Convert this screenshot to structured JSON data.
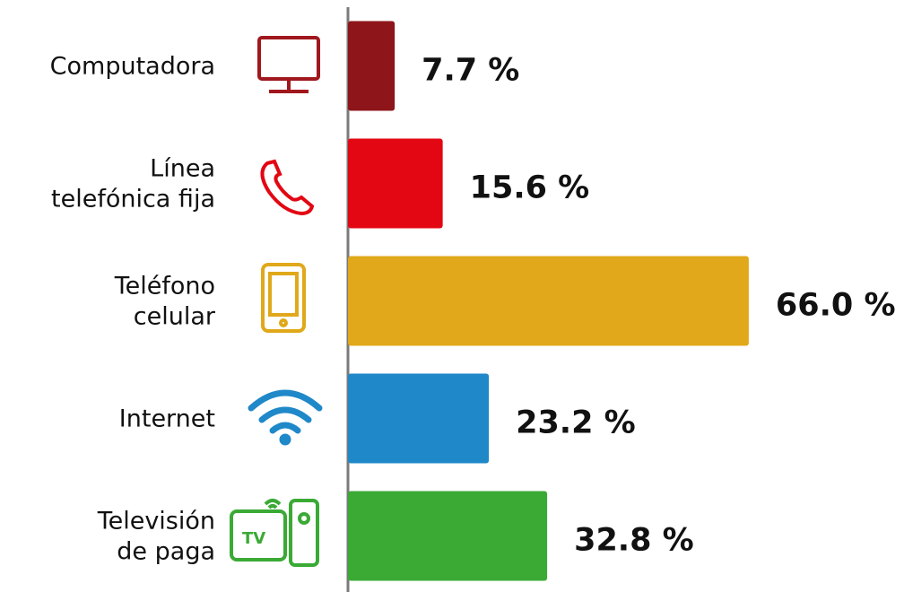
{
  "chart_data": {
    "type": "bar",
    "orientation": "horizontal",
    "categories": [
      "Computadora",
      "Línea\ntelefónica fija",
      "Teléfono\ncelular",
      "Internet",
      "Televisión\nde paga"
    ],
    "values": [
      7.7,
      15.6,
      66.0,
      23.2,
      32.8
    ],
    "value_labels": [
      "7.7 %",
      "15.6 %",
      "66.0 %",
      "23.2 %",
      "32.8 %"
    ],
    "colors": [
      "#8e1519",
      "#e30613",
      "#e0a81a",
      "#1f88c8",
      "#3aaa35"
    ],
    "xlim": [
      0,
      70
    ]
  }
}
